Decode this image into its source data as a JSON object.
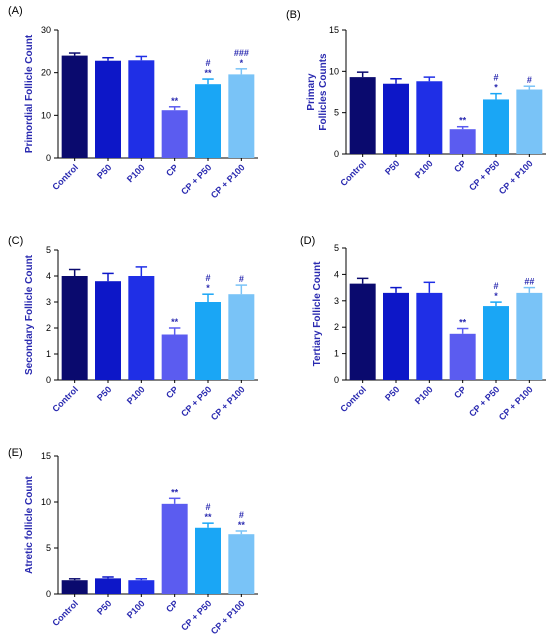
{
  "colors": [
    "#0a0a6e",
    "#0d17c8",
    "#1f2fe6",
    "#5b5cf0",
    "#1aa6f5",
    "#79c3f7"
  ],
  "chart_data": [
    {
      "type": "bar",
      "label": "(A)",
      "ylabel": "Primordial Follicle Count",
      "categories": [
        "Control",
        "P50",
        "P100",
        "CP",
        "CP + P50",
        "CP + P100"
      ],
      "values": [
        24.0,
        22.8,
        22.9,
        11.2,
        17.3,
        19.6
      ],
      "errors": [
        0.6,
        0.7,
        0.9,
        0.8,
        1.2,
        1.3
      ],
      "annotations": [
        "",
        "",
        "",
        "**",
        "#\n**",
        "###\n*"
      ],
      "ylim": [
        0,
        30
      ],
      "yticks": [
        0,
        10,
        20,
        30
      ]
    },
    {
      "type": "bar",
      "label": "(B)",
      "ylabel": "Primary\nFollicles Counts",
      "categories": [
        "Control",
        "P50",
        "P100",
        "CP",
        "CP + P50",
        "CP + P100"
      ],
      "values": [
        9.3,
        8.5,
        8.8,
        3.0,
        6.6,
        7.8
      ],
      "errors": [
        0.6,
        0.6,
        0.5,
        0.3,
        0.7,
        0.4
      ],
      "annotations": [
        "",
        "",
        "",
        "**",
        "#\n*",
        "#"
      ],
      "ylim": [
        0,
        15
      ],
      "yticks": [
        0,
        5,
        10,
        15
      ]
    },
    {
      "type": "bar",
      "label": "(C)",
      "ylabel": "Secondary Follicle Count",
      "categories": [
        "Control",
        "P50",
        "P100",
        "CP",
        "CP + P50",
        "CP + P100"
      ],
      "values": [
        4.0,
        3.8,
        4.0,
        1.75,
        3.0,
        3.3
      ],
      "errors": [
        0.25,
        0.3,
        0.35,
        0.25,
        0.3,
        0.35
      ],
      "annotations": [
        "",
        "",
        "",
        "**",
        "#\n*",
        "#"
      ],
      "ylim": [
        0,
        5
      ],
      "yticks": [
        0,
        1,
        2,
        3,
        4,
        5
      ]
    },
    {
      "type": "bar",
      "label": "(D)",
      "ylabel": "Tertiary Follicle Count",
      "categories": [
        "Control",
        "P50",
        "P100",
        "CP",
        "CP + P50",
        "CP + P100"
      ],
      "values": [
        3.65,
        3.3,
        3.3,
        1.75,
        2.8,
        3.3
      ],
      "errors": [
        0.2,
        0.2,
        0.4,
        0.2,
        0.15,
        0.2
      ],
      "annotations": [
        "",
        "",
        "",
        "**",
        "#\n*",
        "##"
      ],
      "ylim": [
        0,
        5
      ],
      "yticks": [
        0,
        1,
        2,
        3,
        4,
        5
      ]
    },
    {
      "type": "bar",
      "label": "(E)",
      "ylabel": "Atretic follicle Count",
      "categories": [
        "Control",
        "P50",
        "P100",
        "CP",
        "CP + P50",
        "CP + P100"
      ],
      "values": [
        1.5,
        1.7,
        1.5,
        9.8,
        7.2,
        6.5
      ],
      "errors": [
        0.15,
        0.15,
        0.15,
        0.6,
        0.5,
        0.35
      ],
      "annotations": [
        "",
        "",
        "",
        "**",
        "#\n**",
        "#\n**"
      ],
      "ylim": [
        0,
        15
      ],
      "yticks": [
        0,
        5,
        10,
        15
      ]
    }
  ]
}
